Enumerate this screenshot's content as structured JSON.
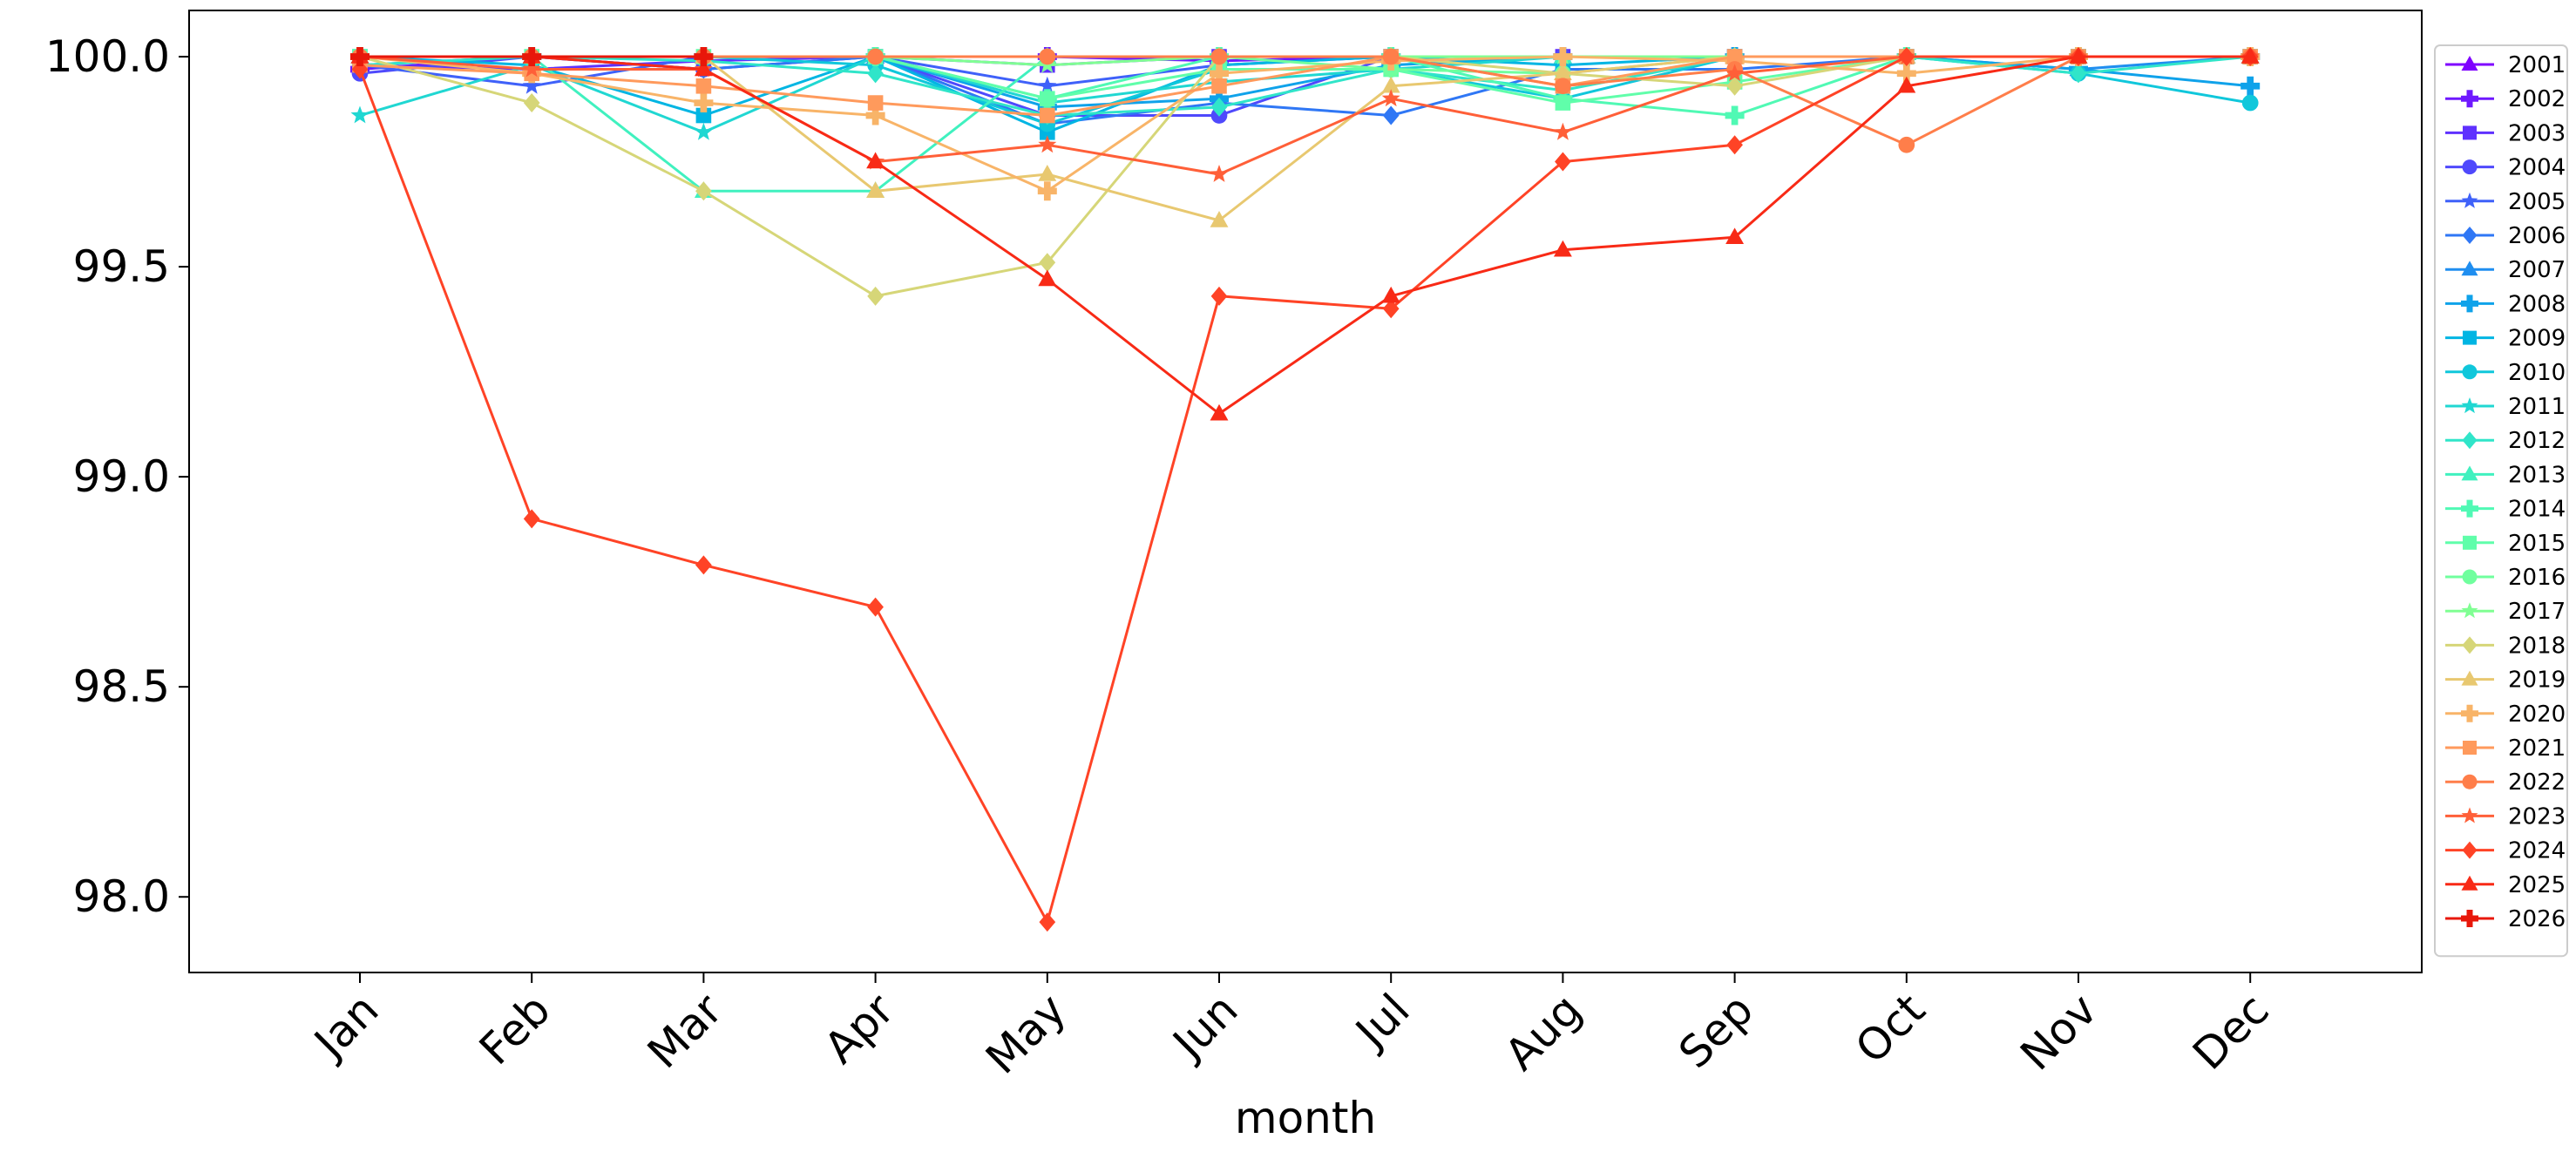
{
  "chart_data": {
    "type": "line",
    "title": "",
    "xlabel": "month",
    "ylabel": "",
    "categories": [
      "Jan",
      "Feb",
      "Mar",
      "Apr",
      "May",
      "Jun",
      "Jul",
      "Aug",
      "Sep",
      "Oct",
      "Nov",
      "Dec"
    ],
    "ylim": [
      97.82,
      100.11
    ],
    "yticks": [
      "98.0",
      "98.5",
      "99.0",
      "99.5",
      "100.0"
    ],
    "grid": false,
    "legend_position": "right",
    "series": [
      {
        "name": "2001",
        "color": "#7f00ff",
        "marker": "triangle",
        "values": [
          100.0,
          100.0,
          100.0,
          100.0,
          100.0,
          100.0,
          100.0,
          100.0,
          100.0,
          100.0,
          100.0,
          100.0
        ]
      },
      {
        "name": "2002",
        "color": "#6f19ff",
        "marker": "plus",
        "values": [
          99.97,
          100.0,
          100.0,
          100.0,
          100.0,
          99.99,
          100.0,
          100.0,
          100.0,
          100.0,
          100.0,
          100.0
        ]
      },
      {
        "name": "2003",
        "color": "#5f31fe",
        "marker": "square",
        "values": [
          99.98,
          99.97,
          99.99,
          100.0,
          99.98,
          100.0,
          100.0,
          100.0,
          100.0,
          100.0,
          100.0,
          100.0
        ]
      },
      {
        "name": "2004",
        "color": "#4f49fc",
        "marker": "circle",
        "values": [
          99.96,
          100.0,
          99.97,
          100.0,
          99.86,
          99.86,
          100.0,
          100.0,
          100.0,
          100.0,
          100.0,
          100.0
        ]
      },
      {
        "name": "2005",
        "color": "#3f61f9",
        "marker": "star",
        "values": [
          99.98,
          99.93,
          100.0,
          100.0,
          99.93,
          99.98,
          100.0,
          100.0,
          100.0,
          100.0,
          100.0,
          100.0
        ]
      },
      {
        "name": "2006",
        "color": "#2f77f5",
        "marker": "diamond",
        "values": [
          99.98,
          100.0,
          99.97,
          100.0,
          99.84,
          99.89,
          99.86,
          99.97,
          99.97,
          100.0,
          100.0,
          100.0
        ]
      },
      {
        "name": "2007",
        "color": "#1f8ef0",
        "marker": "triangle",
        "values": [
          100.0,
          100.0,
          100.0,
          100.0,
          100.0,
          100.0,
          100.0,
          100.0,
          100.0,
          100.0,
          99.97,
          100.0
        ]
      },
      {
        "name": "2008",
        "color": "#0fa2ea",
        "marker": "plus",
        "values": [
          100.0,
          100.0,
          100.0,
          100.0,
          99.88,
          99.9,
          99.98,
          100.0,
          100.0,
          100.0,
          99.97,
          99.93
        ]
      },
      {
        "name": "2009",
        "color": "#00b5e3",
        "marker": "square",
        "values": [
          100.0,
          99.98,
          99.86,
          100.0,
          99.82,
          99.98,
          100.0,
          99.98,
          100.0,
          100.0,
          100.0,
          100.0
        ]
      },
      {
        "name": "2010",
        "color": "#10c7db",
        "marker": "circle",
        "values": [
          100.0,
          100.0,
          100.0,
          99.98,
          99.84,
          99.97,
          99.97,
          99.9,
          100.0,
          100.0,
          99.96,
          99.89
        ]
      },
      {
        "name": "2011",
        "color": "#20d7d2",
        "marker": "star",
        "values": [
          99.86,
          99.98,
          99.82,
          100.0,
          99.89,
          99.94,
          99.97,
          100.0,
          100.0,
          100.0,
          100.0,
          100.0
        ]
      },
      {
        "name": "2012",
        "color": "#30e5c9",
        "marker": "diamond",
        "values": [
          99.98,
          100.0,
          99.99,
          99.96,
          99.86,
          99.88,
          99.97,
          99.92,
          100.0,
          100.0,
          99.96,
          100.0
        ]
      },
      {
        "name": "2013",
        "color": "#40f1bf",
        "marker": "triangle",
        "values": [
          100.0,
          100.0,
          99.68,
          99.68,
          100.0,
          100.0,
          100.0,
          100.0,
          100.0,
          100.0,
          100.0,
          100.0
        ]
      },
      {
        "name": "2014",
        "color": "#50f9b4",
        "marker": "plus",
        "values": [
          100.0,
          100.0,
          100.0,
          100.0,
          99.9,
          100.0,
          100.0,
          99.9,
          99.86,
          100.0,
          100.0,
          100.0
        ]
      },
      {
        "name": "2015",
        "color": "#60feaa",
        "marker": "square",
        "values": [
          100.0,
          100.0,
          100.0,
          100.0,
          99.9,
          99.97,
          99.97,
          99.89,
          99.94,
          100.0,
          100.0,
          100.0
        ]
      },
      {
        "name": "2016",
        "color": "#70ff9e",
        "marker": "circle",
        "values": [
          100.0,
          100.0,
          100.0,
          100.0,
          100.0,
          100.0,
          99.97,
          99.96,
          100.0,
          100.0,
          100.0,
          100.0
        ]
      },
      {
        "name": "2017",
        "color": "#80ff93",
        "marker": "star",
        "values": [
          100.0,
          100.0,
          100.0,
          100.0,
          99.98,
          100.0,
          100.0,
          100.0,
          100.0,
          100.0,
          100.0,
          100.0
        ]
      },
      {
        "name": "2018",
        "color": "#d6d678",
        "marker": "diamond",
        "values": [
          100.0,
          99.89,
          99.68,
          99.43,
          99.51,
          100.0,
          100.0,
          99.96,
          99.93,
          100.0,
          100.0,
          100.0
        ]
      },
      {
        "name": "2019",
        "color": "#e8c870",
        "marker": "triangle",
        "values": [
          100.0,
          100.0,
          100.0,
          99.68,
          99.72,
          99.61,
          99.93,
          99.96,
          100.0,
          100.0,
          100.0,
          100.0
        ]
      },
      {
        "name": "2020",
        "color": "#f8b468",
        "marker": "plus",
        "values": [
          100.0,
          99.96,
          99.89,
          99.86,
          99.68,
          99.96,
          99.99,
          100.0,
          99.99,
          99.96,
          100.0,
          100.0
        ]
      },
      {
        "name": "2021",
        "color": "#ff9a5c",
        "marker": "square",
        "values": [
          99.98,
          99.96,
          99.93,
          99.89,
          99.86,
          99.93,
          100.0,
          99.93,
          100.0,
          100.0,
          100.0,
          100.0
        ]
      },
      {
        "name": "2022",
        "color": "#ff7e4a",
        "marker": "circle",
        "values": [
          100.0,
          100.0,
          100.0,
          100.0,
          100.0,
          100.0,
          100.0,
          99.93,
          99.97,
          99.79,
          100.0,
          100.0
        ]
      },
      {
        "name": "2023",
        "color": "#ff5f38",
        "marker": "star",
        "values": [
          100.0,
          99.97,
          99.97,
          99.75,
          99.79,
          99.72,
          99.9,
          99.82,
          99.96,
          100.0,
          100.0,
          100.0
        ]
      },
      {
        "name": "2024",
        "color": "#ff4326",
        "marker": "diamond",
        "values": [
          99.97,
          98.9,
          98.79,
          98.69,
          97.94,
          99.43,
          99.4,
          99.75,
          99.79,
          100.0,
          100.0,
          100.0
        ]
      },
      {
        "name": "2025",
        "color": "#f82a16",
        "marker": "triangle",
        "values": [
          100.0,
          100.0,
          99.97,
          99.75,
          99.47,
          99.15,
          99.43,
          99.54,
          99.57,
          99.93,
          100.0,
          100.0
        ]
      },
      {
        "name": "2026",
        "color": "#e8170a",
        "marker": "plus",
        "values": [
          100.0,
          100.0,
          100.0,
          null,
          null,
          null,
          null,
          null,
          null,
          null,
          null,
          null
        ]
      }
    ]
  }
}
